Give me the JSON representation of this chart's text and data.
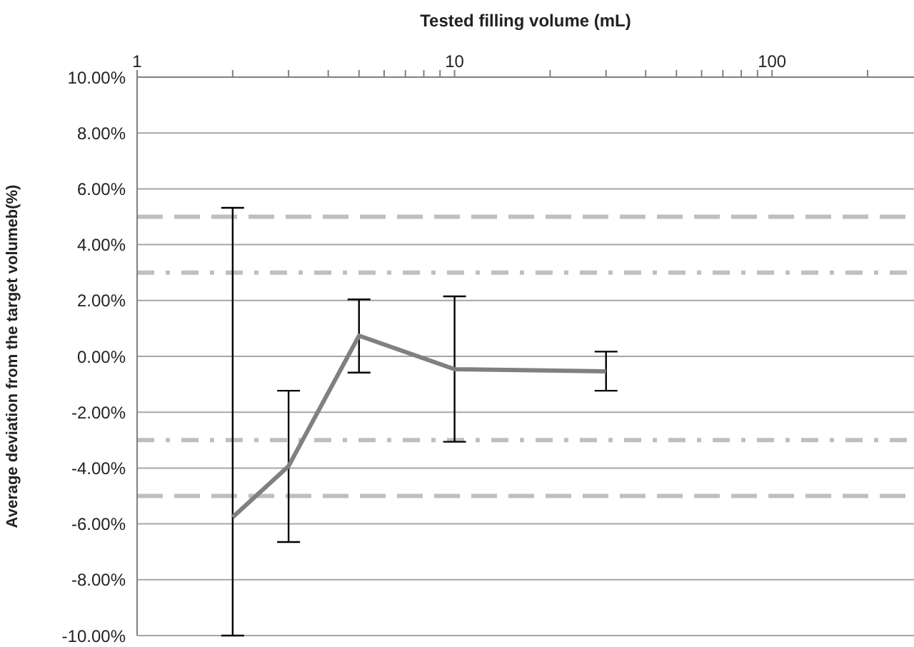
{
  "chart_data": {
    "type": "line",
    "xlabel": "Tested filling volume (mL)",
    "ylabel": "Average deviation from the target volumeb(%)",
    "log": "x",
    "grid": "y",
    "marker": "none",
    "line_style": "solid",
    "xlim": [
      1,
      280
    ],
    "xticks": [
      1,
      {
        "value": 2,
        "label": null
      },
      {
        "value": 3,
        "label": null
      },
      {
        "value": 4,
        "label": null
      },
      {
        "value": 5,
        "label": null
      },
      {
        "value": 6,
        "label": null
      },
      {
        "value": 7,
        "label": null
      },
      {
        "value": 8,
        "label": null
      },
      {
        "value": 9,
        "label": null
      },
      10,
      {
        "value": 20,
        "label": null
      },
      {
        "value": 30,
        "label": null
      },
      {
        "value": 40,
        "label": null
      },
      {
        "value": 50,
        "label": null
      },
      {
        "value": 60,
        "label": null
      },
      {
        "value": 70,
        "label": null
      },
      {
        "value": 80,
        "label": null
      },
      {
        "value": 90,
        "label": null
      },
      100,
      {
        "value": 200,
        "label": null
      }
    ],
    "ylim": [
      -10,
      10
    ],
    "yticks": [
      {
        "value": -10,
        "label": "-10.00%"
      },
      {
        "value": -8,
        "label": "-8.00%"
      },
      {
        "value": -6,
        "label": "-6.00%"
      },
      {
        "value": -4,
        "label": "-4.00%"
      },
      {
        "value": -2,
        "label": "-2.00%"
      },
      {
        "value": 0,
        "label": "0.00%"
      },
      {
        "value": 2,
        "label": "2.00%"
      },
      {
        "value": 4,
        "label": "4.00%"
      },
      {
        "value": 6,
        "label": "6.00%"
      },
      {
        "value": 8,
        "label": "8.00%"
      },
      {
        "value": 10,
        "label": "10.00%"
      }
    ],
    "x": [
      2,
      3,
      5,
      10,
      30
    ],
    "series": [
      {
        "color": "#808080",
        "values": [
          -5.76,
          -3.93,
          0.74,
          -0.46,
          -0.54
        ],
        "errors": [
          [
            -10,
            5.32
          ],
          [
            -6.65,
            -1.23
          ],
          [
            -0.58,
            2.04
          ],
          [
            -3.06,
            2.15
          ],
          [
            -1.23,
            0.17
          ]
        ]
      }
    ],
    "ref_lines": [
      {
        "axis": "y",
        "value": 5,
        "color": "#bfbfbf",
        "line_style": "dashed"
      },
      {
        "axis": "y",
        "value": 3,
        "color": "#bfbfbf",
        "line_style": "dashdot"
      },
      {
        "axis": "y",
        "value": -3,
        "color": "#bfbfbf",
        "line_style": "dashdot"
      },
      {
        "axis": "y",
        "value": -5,
        "color": "#bfbfbf",
        "line_style": "dashed"
      }
    ]
  }
}
